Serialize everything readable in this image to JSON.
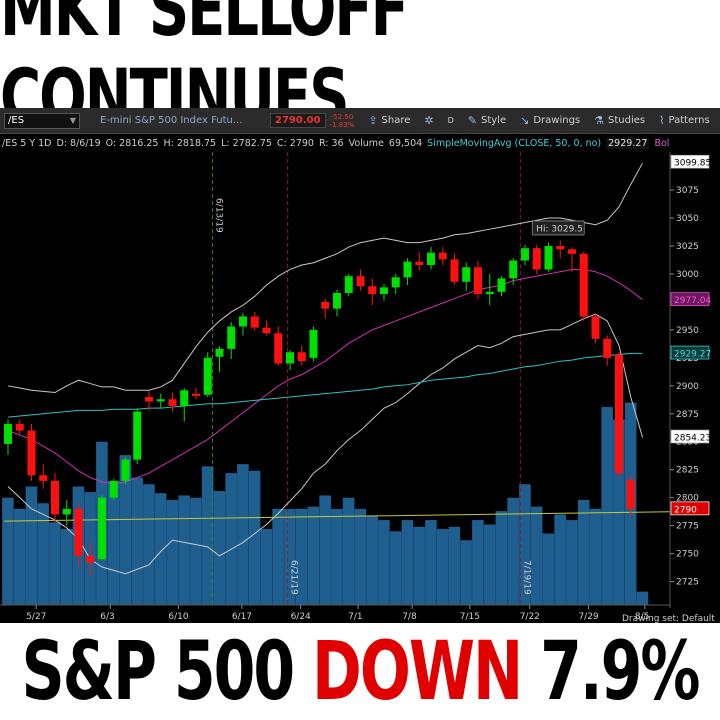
{
  "headline_top": "MKT SELLOFF CONTINUES",
  "headline_bottom": {
    "part1": "S&P 500 ",
    "part2": "DOWN",
    "part3": " 7.9%"
  },
  "colors": {
    "up": "#00e000",
    "down": "#ff1010",
    "volume": "#1f5f8f",
    "sma": "#30c0c0",
    "bb_mid": "#d030b0",
    "bb_band": "#c8c8c8",
    "vol_avg": "#c8c830"
  },
  "toolbar": {
    "symbol": "/ES",
    "description": "E-mini S&P 500 Index Futu...",
    "last_price": "2790.00",
    "change_top": "-52.50",
    "change_bottom": "-1.83%",
    "share": "Share",
    "style": "Style",
    "drawings": "Drawings",
    "studies": "Studies",
    "patterns": "Patterns",
    "d_label": "D"
  },
  "infobar": {
    "symbol_period": "/ES 5 Y 1D",
    "date": "D: 8/6/19",
    "open": "O: 2816.25",
    "high": "H: 2818.75",
    "low": "L: 2782.75",
    "close": "C: 2790",
    "range": "R: 36",
    "volume_label": "Volume",
    "volume_value": "69,504",
    "sma_label": "SimpleMovingAvg (CLOSE, 50, 0, no)",
    "sma_value": "2929.27",
    "bb_label": "BollingerBands ..."
  },
  "chart_data": {
    "type": "candlestick",
    "y_axis_ticks": [
      2725,
      2750,
      2775,
      2800,
      2825,
      2850,
      2875,
      2900,
      2925,
      2950,
      2975,
      3000,
      3025,
      3050,
      3075
    ],
    "ylim": [
      2713,
      3109
    ],
    "x_tick_labels": [
      "5/27",
      "6/3",
      "6/10",
      "6/17",
      "6/24",
      "7/1",
      "7/8",
      "7/15",
      "7/22",
      "7/29",
      "8/5"
    ],
    "price_tags": [
      {
        "text": "3099.85",
        "value": 3099.85,
        "color": "#000000",
        "bg": "#ffffff"
      },
      {
        "text": "2977.04",
        "value": 2977.04,
        "color": "#ff50e0",
        "bg": "#6a1a5a"
      },
      {
        "text": "2929.27",
        "value": 2929.27,
        "color": "#40e0e0",
        "bg": "#0a3a3a"
      },
      {
        "text": "2854.23",
        "value": 2854.23,
        "color": "#000000",
        "bg": "#ffffff"
      },
      {
        "text": "2790",
        "value": 2790,
        "color": "#ffffff",
        "bg": "#e00000"
      }
    ],
    "high_label": "Hi: 3029.5",
    "event_labels": [
      "6/13/19",
      "6/21/19",
      "7/19/19"
    ],
    "drawing_set": "Drawing set: Default",
    "candles": [
      {
        "o": 2848,
        "h": 2870,
        "l": 2838,
        "c": 2866
      },
      {
        "o": 2866,
        "h": 2870,
        "l": 2857,
        "c": 2860
      },
      {
        "o": 2860,
        "h": 2866,
        "l": 2815,
        "c": 2820
      },
      {
        "o": 2820,
        "h": 2830,
        "l": 2808,
        "c": 2815
      },
      {
        "o": 2815,
        "h": 2822,
        "l": 2778,
        "c": 2785
      },
      {
        "o": 2785,
        "h": 2798,
        "l": 2775,
        "c": 2790
      },
      {
        "o": 2790,
        "h": 2795,
        "l": 2738,
        "c": 2748
      },
      {
        "o": 2748,
        "h": 2760,
        "l": 2730,
        "c": 2742
      },
      {
        "o": 2745,
        "h": 2802,
        "l": 2745,
        "c": 2800
      },
      {
        "o": 2800,
        "h": 2817,
        "l": 2798,
        "c": 2815
      },
      {
        "o": 2815,
        "h": 2836,
        "l": 2812,
        "c": 2834
      },
      {
        "o": 2834,
        "h": 2880,
        "l": 2830,
        "c": 2877
      },
      {
        "o": 2890,
        "h": 2895,
        "l": 2878,
        "c": 2886
      },
      {
        "o": 2886,
        "h": 2893,
        "l": 2880,
        "c": 2888
      },
      {
        "o": 2888,
        "h": 2894,
        "l": 2877,
        "c": 2882
      },
      {
        "o": 2882,
        "h": 2898,
        "l": 2868,
        "c": 2896
      },
      {
        "o": 2893,
        "h": 2898,
        "l": 2888,
        "c": 2891
      },
      {
        "o": 2892,
        "h": 2930,
        "l": 2890,
        "c": 2925
      },
      {
        "o": 2926,
        "h": 2935,
        "l": 2912,
        "c": 2933
      },
      {
        "o": 2933,
        "h": 2957,
        "l": 2924,
        "c": 2953
      },
      {
        "o": 2953,
        "h": 2965,
        "l": 2945,
        "c": 2962
      },
      {
        "o": 2962,
        "h": 2966,
        "l": 2949,
        "c": 2952
      },
      {
        "o": 2952,
        "h": 2958,
        "l": 2945,
        "c": 2947
      },
      {
        "o": 2947,
        "h": 2953,
        "l": 2918,
        "c": 2920
      },
      {
        "o": 2920,
        "h": 2932,
        "l": 2914,
        "c": 2930
      },
      {
        "o": 2930,
        "h": 2936,
        "l": 2918,
        "c": 2922
      },
      {
        "o": 2925,
        "h": 2953,
        "l": 2922,
        "c": 2950
      },
      {
        "o": 2975,
        "h": 2978,
        "l": 2960,
        "c": 2969
      },
      {
        "o": 2969,
        "h": 2986,
        "l": 2962,
        "c": 2983
      },
      {
        "o": 2983,
        "h": 3000,
        "l": 2980,
        "c": 2998
      },
      {
        "o": 2998,
        "h": 3004,
        "l": 2985,
        "c": 2989
      },
      {
        "o": 2989,
        "h": 2996,
        "l": 2972,
        "c": 2982
      },
      {
        "o": 2982,
        "h": 2991,
        "l": 2976,
        "c": 2988
      },
      {
        "o": 2988,
        "h": 3000,
        "l": 2982,
        "c": 2997
      },
      {
        "o": 2997,
        "h": 3014,
        "l": 2990,
        "c": 3011
      },
      {
        "o": 3011,
        "h": 3020,
        "l": 3003,
        "c": 3008
      },
      {
        "o": 3008,
        "h": 3024,
        "l": 3004,
        "c": 3019
      },
      {
        "o": 3019,
        "h": 3024,
        "l": 3008,
        "c": 3013
      },
      {
        "o": 3013,
        "h": 3018,
        "l": 2990,
        "c": 2993
      },
      {
        "o": 2993,
        "h": 3010,
        "l": 2985,
        "c": 3006
      },
      {
        "o": 3006,
        "h": 3012,
        "l": 2978,
        "c": 2982
      },
      {
        "o": 2982,
        "h": 3000,
        "l": 2972,
        "c": 2984
      },
      {
        "o": 2984,
        "h": 2998,
        "l": 2980,
        "c": 2996
      },
      {
        "o": 2996,
        "h": 3014,
        "l": 2990,
        "c": 3012
      },
      {
        "o": 3012,
        "h": 3026,
        "l": 3008,
        "c": 3023
      },
      {
        "o": 3023,
        "h": 3026,
        "l": 3000,
        "c": 3004
      },
      {
        "o": 3004,
        "h": 3028,
        "l": 3002,
        "c": 3025
      },
      {
        "o": 3025,
        "h": 3030,
        "l": 3014,
        "c": 3022
      },
      {
        "o": 3022,
        "h": 3024,
        "l": 3002,
        "c": 3018
      },
      {
        "o": 3018,
        "h": 3020,
        "l": 2958,
        "c": 2962
      },
      {
        "o": 2962,
        "h": 2965,
        "l": 2938,
        "c": 2942
      },
      {
        "o": 2942,
        "h": 2945,
        "l": 2918,
        "c": 2925
      },
      {
        "o": 2928,
        "h": 2930,
        "l": 2818,
        "c": 2822
      },
      {
        "o": 2816,
        "h": 2819,
        "l": 2783,
        "c": 2790
      }
    ],
    "volume": [
      2800,
      2790,
      2810,
      2795,
      2778,
      2772,
      2810,
      2805,
      2850,
      2815,
      2838,
      2818,
      2812,
      2804,
      2798,
      2802,
      2800,
      2828,
      2806,
      2822,
      2830,
      2824,
      2772,
      2790,
      2790,
      2790,
      2792,
      2802,
      2790,
      2800,
      2790,
      2784,
      2780,
      2770,
      2780,
      2774,
      2780,
      2772,
      2774,
      2762,
      2780,
      2776,
      2788,
      2800,
      2812,
      2792,
      2768,
      2785,
      2780,
      2798,
      2790,
      2881,
      2870,
      2885,
      2716
    ],
    "sma_series": [
      2872,
      2873,
      2874,
      2875,
      2876,
      2877,
      2878,
      2878,
      2878,
      2879,
      2879,
      2879,
      2880,
      2880,
      2881,
      2882,
      2883,
      2884,
      2884,
      2885,
      2886,
      2887,
      2888,
      2889,
      2890,
      2891,
      2892,
      2893,
      2894,
      2895,
      2896,
      2897,
      2899,
      2900,
      2901,
      2903,
      2905,
      2906,
      2907,
      2908,
      2910,
      2911,
      2913,
      2915,
      2917,
      2918,
      2920,
      2922,
      2923,
      2925,
      2926,
      2927,
      2928,
      2929,
      2929
    ],
    "bb_mid_series": [
      2860,
      2856,
      2852,
      2846,
      2840,
      2832,
      2824,
      2818,
      2814,
      2812,
      2814,
      2818,
      2822,
      2828,
      2834,
      2840,
      2846,
      2852,
      2860,
      2868,
      2876,
      2884,
      2892,
      2900,
      2906,
      2910,
      2916,
      2922,
      2930,
      2938,
      2944,
      2950,
      2954,
      2958,
      2962,
      2966,
      2970,
      2974,
      2978,
      2982,
      2986,
      2988,
      2990,
      2994,
      2996,
      2998,
      3000,
      3002,
      3004,
      3004,
      3002,
      2998,
      2992,
      2985,
      2977
    ],
    "bb_upper_series": [
      2900,
      2898,
      2896,
      2895,
      2894,
      2900,
      2905,
      2902,
      2899,
      2899,
      2896,
      2896,
      2896,
      2899,
      2905,
      2920,
      2935,
      2948,
      2958,
      2966,
      2972,
      2980,
      2990,
      2998,
      3004,
      3008,
      3010,
      3014,
      3018,
      3024,
      3028,
      3030,
      3032,
      3030,
      3028,
      3028,
      3030,
      3032,
      3035,
      3036,
      3038,
      3040,
      3042,
      3044,
      3046,
      3048,
      3050,
      3050,
      3048,
      3046,
      3044,
      3048,
      3060,
      3080,
      3099
    ],
    "bb_lower_series": [
      2810,
      2800,
      2790,
      2785,
      2780,
      2773,
      2763,
      2745,
      2738,
      2735,
      2732,
      2736,
      2740,
      2752,
      2762,
      2760,
      2758,
      2756,
      2748,
      2754,
      2760,
      2768,
      2776,
      2786,
      2797,
      2808,
      2822,
      2830,
      2842,
      2852,
      2860,
      2870,
      2880,
      2885,
      2893,
      2902,
      2910,
      2916,
      2924,
      2930,
      2936,
      2934,
      2938,
      2944,
      2946,
      2948,
      2950,
      2950,
      2955,
      2960,
      2964,
      2958,
      2936,
      2890,
      2854
    ],
    "vol_avg_value": 2779
  }
}
